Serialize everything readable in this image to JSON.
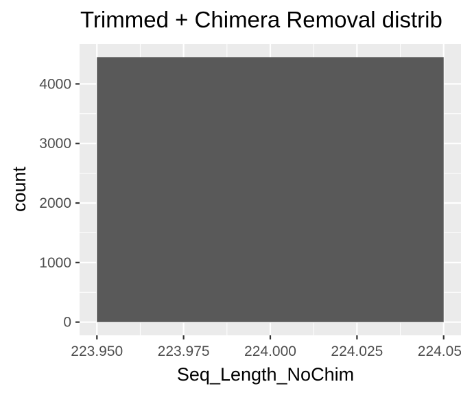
{
  "chart_data": {
    "type": "bar",
    "title": "Trimmed + Chimera Removal distrib",
    "xlabel": "Seq_Length_NoChim",
    "ylabel": "count",
    "x_ticks": [
      "223.950",
      "223.975",
      "224.000",
      "224.025",
      "224.050"
    ],
    "x_tick_values": [
      223.95,
      223.975,
      224.0,
      224.025,
      224.05
    ],
    "y_ticks": [
      "0",
      "1000",
      "2000",
      "3000",
      "4000"
    ],
    "y_tick_values": [
      0,
      1000,
      2000,
      3000,
      4000
    ],
    "xlim": [
      223.945,
      224.055
    ],
    "ylim": [
      -222.5,
      4672.5
    ],
    "bars": [
      {
        "x_start": 223.95,
        "x_end": 224.05,
        "value": 4450
      }
    ],
    "grid": true,
    "colors": {
      "panel": "#ebebeb",
      "grid": "#ffffff",
      "bar": "#595959",
      "tick": "#333333"
    }
  }
}
